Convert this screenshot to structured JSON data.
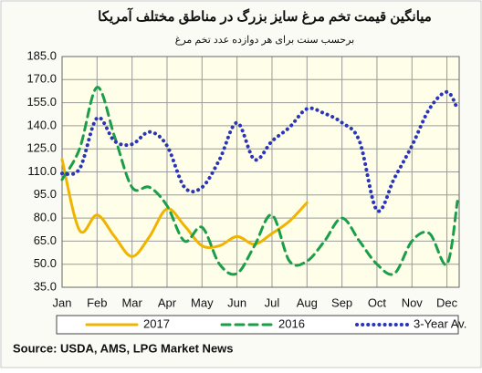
{
  "chart_data": {
    "type": "line",
    "title": "میانگین قیمت تخم مرغ سایز بزرگ در مناطق مختلف آمریکا",
    "subtitle": "برحسب سنت برای هر دوازده عدد تخم مرغ",
    "source": "Source: USDA, AMS, LPG  Market News",
    "x": [
      0,
      0.5,
      1,
      1.5,
      2,
      2.5,
      3,
      3.5,
      4,
      4.5,
      5,
      5.5,
      6,
      6.5,
      7,
      7.5,
      8,
      8.5,
      9,
      9.5,
      10,
      10.5,
      11,
      11.3
    ],
    "xlim": [
      0,
      11.35
    ],
    "xticks": [
      {
        "value": 0,
        "label": "Jan"
      },
      {
        "value": 1,
        "label": "Feb"
      },
      {
        "value": 2,
        "label": "Mar"
      },
      {
        "value": 3,
        "label": "Apr"
      },
      {
        "value": 4,
        "label": "May"
      },
      {
        "value": 5,
        "label": "Jun"
      },
      {
        "value": 6,
        "label": "Jul"
      },
      {
        "value": 7,
        "label": "Aug"
      },
      {
        "value": 8,
        "label": "Sep"
      },
      {
        "value": 9,
        "label": "Oct"
      },
      {
        "value": 10,
        "label": "Nov"
      },
      {
        "value": 11,
        "label": "Dec"
      }
    ],
    "ylim": [
      35,
      185
    ],
    "yticks": [
      {
        "value": 35,
        "label": "35.0"
      },
      {
        "value": 50,
        "label": "50.0"
      },
      {
        "value": 65,
        "label": "65.0"
      },
      {
        "value": 80,
        "label": "80.0"
      },
      {
        "value": 95,
        "label": "95.0"
      },
      {
        "value": 110,
        "label": "110.0"
      },
      {
        "value": 125,
        "label": "125.0"
      },
      {
        "value": 140,
        "label": "140.0"
      },
      {
        "value": 155,
        "label": "155.0"
      },
      {
        "value": 170,
        "label": "170.0"
      },
      {
        "value": 185,
        "label": "185.0"
      }
    ],
    "grid": true,
    "series": [
      {
        "name": "2017",
        "color": "#f0b400",
        "style": "solid",
        "values": [
          118,
          72,
          82,
          68,
          55,
          68,
          86,
          75,
          62,
          62,
          68,
          63,
          70,
          78,
          90,
          null,
          null,
          null,
          null,
          null,
          null,
          null,
          null,
          null
        ]
      },
      {
        "name": "2016",
        "color": "#1a9e4a",
        "style": "dashed",
        "values": [
          105,
          125,
          165,
          133,
          100,
          100,
          88,
          65,
          74,
          50,
          44,
          62,
          82,
          52,
          52,
          65,
          80,
          65,
          50,
          44,
          65,
          70,
          50,
          91
        ]
      },
      {
        "name": "3-Year Av.",
        "color": "#2a35b8",
        "style": "dotted",
        "values": [
          109,
          112,
          145,
          130,
          128,
          136,
          127,
          100,
          100,
          118,
          142,
          118,
          130,
          139,
          151,
          148,
          142,
          130,
          85,
          106,
          127,
          151,
          162,
          151
        ]
      }
    ]
  }
}
